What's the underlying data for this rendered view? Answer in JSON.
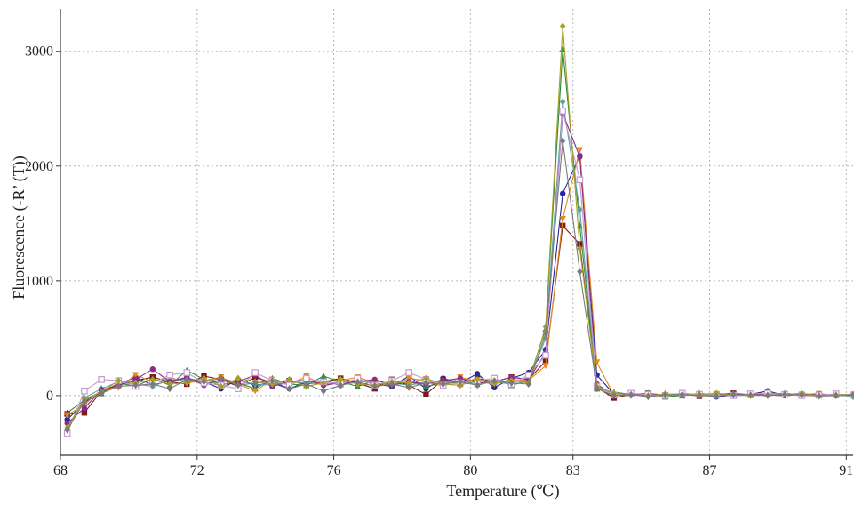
{
  "chart_data": {
    "type": "line",
    "title": "",
    "xlabel": "Temperature (℃)",
    "ylabel": "Fluorescence (-R’ (T))",
    "xlim": [
      68,
      91.2
    ],
    "ylim": [
      -520,
      3370
    ],
    "grid": true,
    "x_ticks": [
      68,
      72,
      76,
      80,
      83,
      87,
      91
    ],
    "x_tick_labels": [
      "68",
      "72",
      "76",
      "80",
      "83",
      "87",
      "91"
    ],
    "y_ticks": [
      0,
      1000,
      2000,
      3000
    ],
    "y_tick_labels": [
      "0",
      "1000",
      "2000",
      "3000"
    ],
    "x": [
      68.2,
      68.7,
      69.2,
      69.7,
      70.2,
      70.7,
      71.2,
      71.7,
      72.2,
      72.7,
      73.2,
      73.7,
      74.2,
      74.7,
      75.2,
      75.7,
      76.2,
      76.7,
      77.2,
      77.7,
      78.2,
      78.7,
      79.2,
      79.7,
      80.2,
      80.7,
      81.2,
      81.7,
      82.2,
      82.7,
      83.2,
      83.7,
      84.2,
      84.7,
      85.2,
      85.7,
      86.2,
      86.7,
      87.2,
      87.7,
      88.2,
      88.7,
      89.2,
      89.7,
      90.2,
      90.7,
      91.2
    ],
    "series": [
      {
        "color": "#1f2a9c",
        "marker": "circle",
        "values": [
          -210,
          -60,
          30,
          100,
          160,
          90,
          130,
          150,
          120,
          60,
          140,
          90,
          110,
          60,
          120,
          130,
          90,
          140,
          100,
          80,
          170,
          60,
          150,
          110,
          190,
          70,
          150,
          200,
          400,
          1760,
          2090,
          180,
          10,
          20,
          0,
          10,
          15,
          10,
          -10,
          5,
          10,
          40,
          0,
          10,
          5,
          0,
          5
        ]
      },
      {
        "color": "#2e8b3a",
        "marker": "triangle",
        "values": [
          -150,
          -40,
          20,
          110,
          80,
          150,
          90,
          220,
          140,
          100,
          110,
          60,
          150,
          100,
          90,
          170,
          120,
          80,
          130,
          100,
          120,
          80,
          110,
          130,
          100,
          140,
          90,
          130,
          580,
          3020,
          1480,
          60,
          30,
          10,
          15,
          -10,
          0,
          20,
          5,
          0,
          10,
          15,
          20,
          5,
          0,
          10,
          5
        ]
      },
      {
        "color": "#7d1a1a",
        "marker": "square",
        "values": [
          -160,
          -150,
          40,
          90,
          130,
          160,
          120,
          100,
          170,
          140,
          80,
          160,
          110,
          130,
          100,
          120,
          150,
          110,
          60,
          140,
          90,
          10,
          140,
          100,
          150,
          120,
          160,
          140,
          300,
          1480,
          1320,
          70,
          -20,
          10,
          20,
          0,
          15,
          -5,
          10,
          20,
          5,
          15,
          10,
          0,
          10,
          5,
          0
        ]
      },
      {
        "color": "#e7881c",
        "marker": "triangle-down",
        "values": [
          -170,
          -80,
          50,
          70,
          180,
          120,
          160,
          110,
          130,
          160,
          100,
          40,
          140,
          90,
          170,
          80,
          130,
          160,
          110,
          90,
          150,
          130,
          80,
          160,
          120,
          100,
          140,
          130,
          260,
          1540,
          2140,
          290,
          0,
          15,
          10,
          5,
          20,
          0,
          15,
          10,
          0,
          20,
          5,
          10,
          15,
          0,
          10
        ]
      },
      {
        "color": "#5aa5a8",
        "marker": "diamond",
        "values": [
          -290,
          -20,
          60,
          120,
          100,
          80,
          140,
          130,
          110,
          120,
          130,
          100,
          90,
          120,
          110,
          100,
          120,
          130,
          100,
          110,
          90,
          120,
          130,
          100,
          110,
          120,
          100,
          120,
          500,
          2560,
          1620,
          70,
          10,
          0,
          20,
          5,
          0,
          15,
          10,
          0,
          5,
          10,
          15,
          0,
          5,
          10,
          -10
        ]
      },
      {
        "color": "#8e2b86",
        "marker": "circle",
        "values": [
          -240,
          -110,
          50,
          90,
          140,
          230,
          120,
          160,
          90,
          140,
          120,
          180,
          80,
          120,
          140,
          90,
          110,
          120,
          140,
          90,
          120,
          100,
          130,
          150,
          110,
          120,
          160,
          140,
          370,
          2460,
          2080,
          100,
          0,
          10,
          15,
          5,
          10,
          0,
          5,
          15,
          10,
          5,
          0,
          10,
          15,
          5,
          10
        ]
      },
      {
        "color": "#c49ad2",
        "marker": "square-open",
        "values": [
          -330,
          40,
          140,
          130,
          80,
          110,
          180,
          200,
          110,
          90,
          60,
          200,
          130,
          90,
          150,
          120,
          100,
          150,
          90,
          130,
          200,
          140,
          90,
          110,
          130,
          150,
          100,
          180,
          350,
          2480,
          1880,
          80,
          5,
          20,
          10,
          0,
          20,
          10,
          5,
          0,
          15,
          20,
          10,
          0,
          5,
          15,
          5
        ]
      },
      {
        "color": "#a7a025",
        "marker": "star",
        "values": [
          -280,
          -30,
          30,
          130,
          110,
          140,
          100,
          110,
          150,
          80,
          150,
          120,
          100,
          140,
          80,
          110,
          140,
          100,
          90,
          120,
          110,
          150,
          100,
          90,
          140,
          110,
          130,
          110,
          600,
          3220,
          1280,
          80,
          20,
          5,
          0,
          15,
          5,
          10,
          20,
          5,
          0,
          5,
          10,
          20,
          0,
          5,
          10
        ]
      },
      {
        "color": "#7a7a7a",
        "marker": "diamond",
        "values": [
          -300,
          -50,
          20,
          80,
          90,
          100,
          60,
          140,
          120,
          150,
          90,
          110,
          130,
          60,
          100,
          40,
          90,
          120,
          80,
          100,
          70,
          110,
          100,
          120,
          90,
          130,
          110,
          100,
          540,
          2220,
          1080,
          60,
          0,
          10,
          -10,
          5,
          10,
          0,
          -5,
          10,
          5,
          0,
          10,
          5,
          -5,
          0,
          5
        ]
      }
    ]
  }
}
